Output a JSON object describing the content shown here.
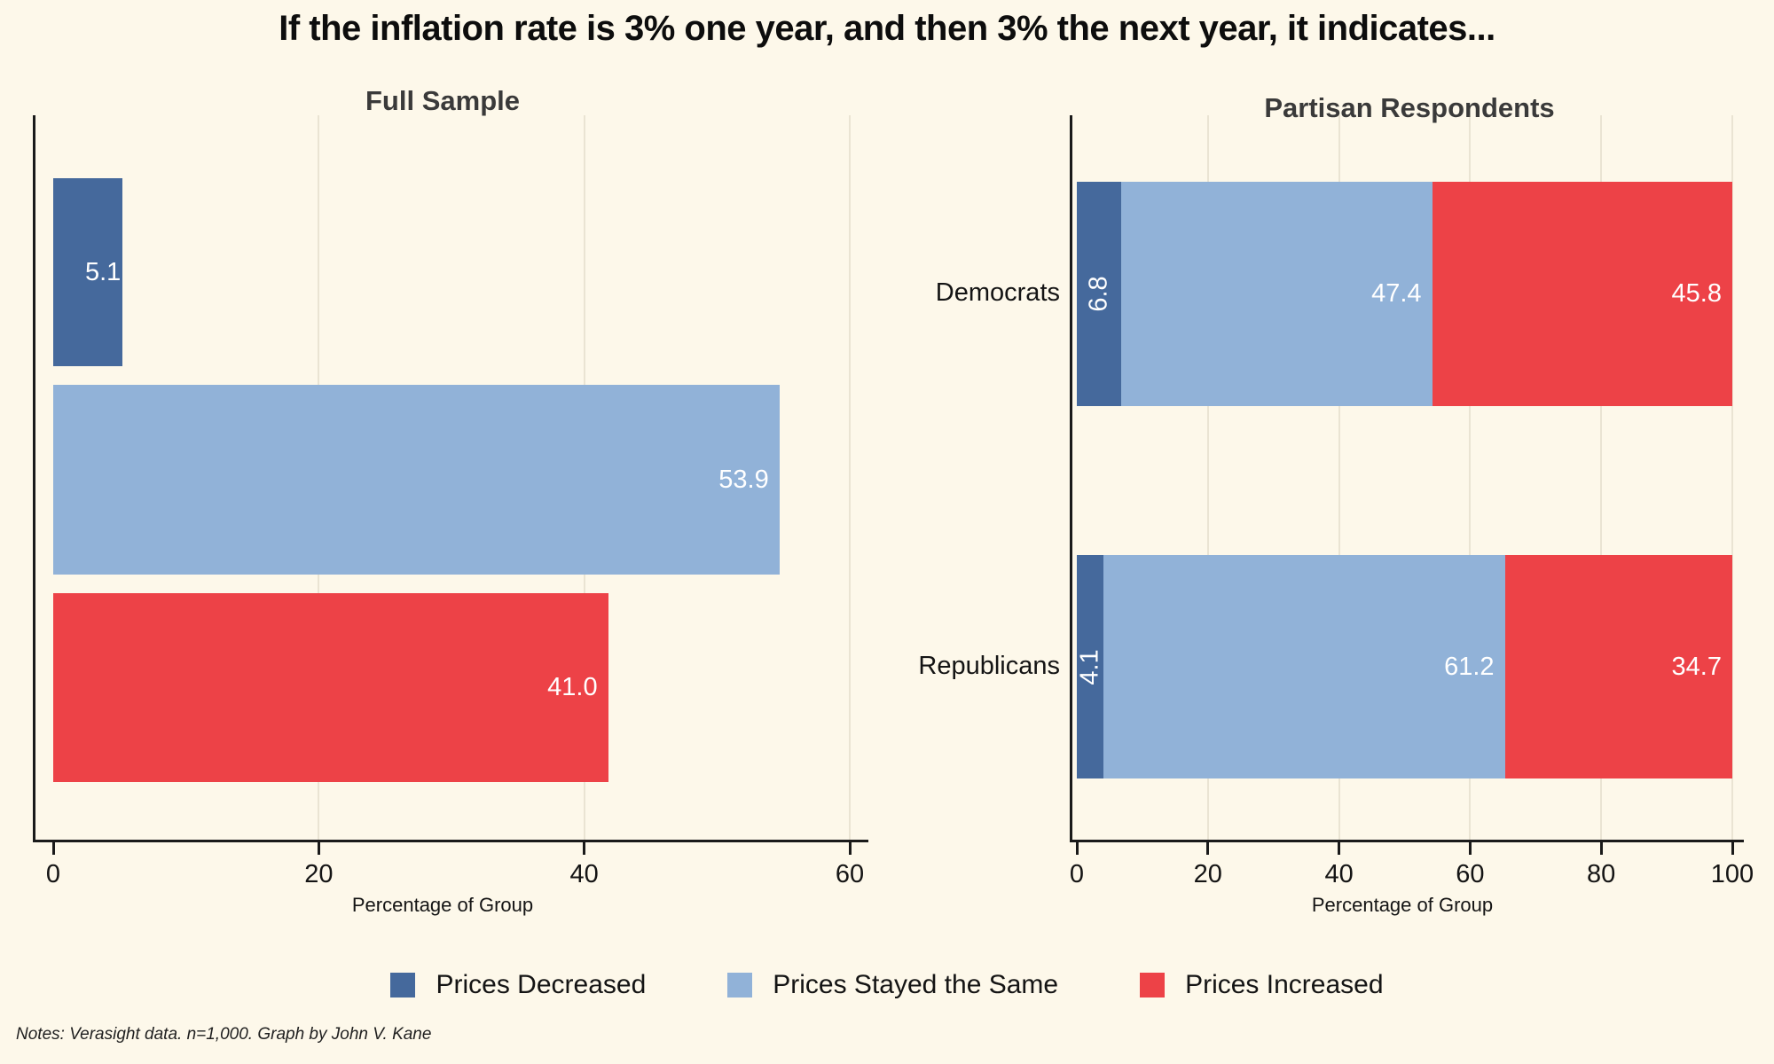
{
  "title": "If the inflation rate is 3% one year, and then 3% the next year, it indicates...",
  "notes": "Notes: Verasight data. n=1,000. Graph by John V. Kane",
  "colors": {
    "background": "#FDF8EA",
    "axis": "#1a1a1a",
    "prices_decreased": "#45699C",
    "prices_stayed_same": "#91B2D8",
    "prices_increased": "#ED4247"
  },
  "legend": {
    "items": [
      {
        "label": "Prices Decreased",
        "color": "#45699C"
      },
      {
        "label": "Prices Stayed the Same",
        "color": "#91B2D8"
      },
      {
        "label": "Prices Increased",
        "color": "#ED4247"
      }
    ]
  },
  "chart_data": [
    {
      "type": "bar",
      "orientation": "horizontal",
      "title": "Full Sample",
      "categories": [
        "Prices Decreased",
        "Prices Stayed the Same",
        "Prices Increased"
      ],
      "values": [
        5.1,
        53.9,
        41.0
      ],
      "value_labels": [
        "5.1",
        "53.9",
        "41.0"
      ],
      "xlabel": "Percentage of Group",
      "xlim": [
        0,
        60
      ],
      "xticks": [
        0,
        20,
        40,
        60
      ],
      "grid": "faint vertical",
      "legend_position": "bottom shared"
    },
    {
      "type": "bar",
      "orientation": "horizontal",
      "stacked": true,
      "title": "Partisan Respondents",
      "categories": [
        "Democrats",
        "Republicans"
      ],
      "series": [
        {
          "name": "Prices Decreased",
          "values": [
            6.8,
            4.1
          ]
        },
        {
          "name": "Prices Stayed the Same",
          "values": [
            47.4,
            61.2
          ]
        },
        {
          "name": "Prices Increased",
          "values": [
            45.8,
            34.7
          ]
        }
      ],
      "value_labels": [
        [
          "6.8",
          "47.4",
          "45.8"
        ],
        [
          "4.1",
          "61.2",
          "34.7"
        ]
      ],
      "xlabel": "Percentage of Group",
      "xlim": [
        0,
        100
      ],
      "xticks": [
        0,
        20,
        40,
        60,
        80,
        100
      ],
      "grid": "faint vertical",
      "legend_position": "bottom shared"
    }
  ]
}
